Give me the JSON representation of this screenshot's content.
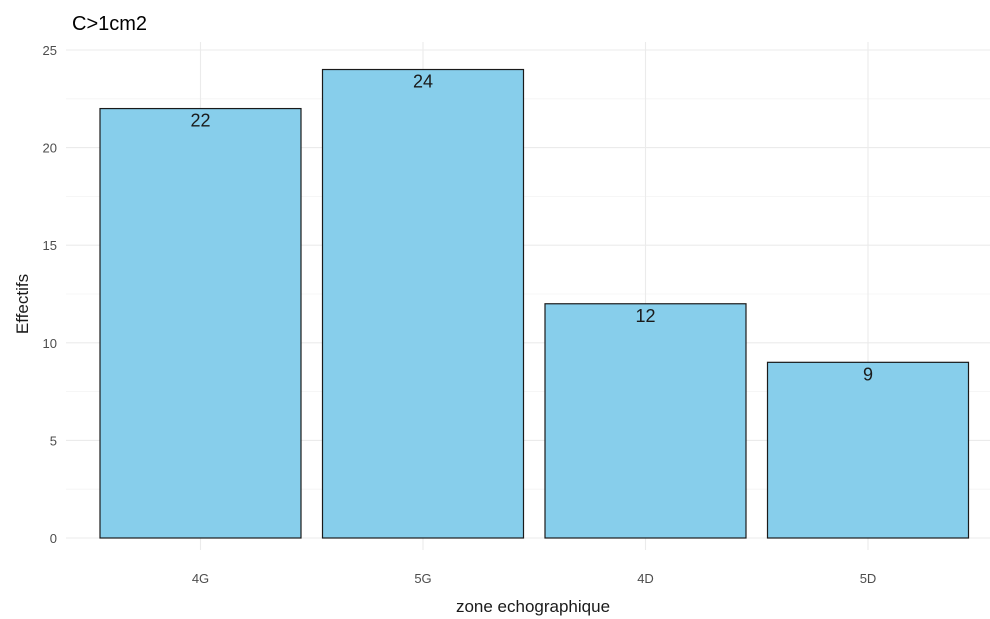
{
  "chart_data": {
    "type": "bar",
    "title": "C>1cm2",
    "xlabel": "zone echographique",
    "ylabel": "Effectifs",
    "categories": [
      "4G",
      "5G",
      "4D",
      "5D"
    ],
    "values": [
      22,
      24,
      12,
      9
    ],
    "data_labels": [
      "22",
      "24",
      "12",
      "9"
    ],
    "ylim": [
      0,
      25
    ],
    "yticks": [
      0,
      5,
      10,
      15,
      20,
      25
    ],
    "ytick_labels": [
      "0",
      "5",
      "10",
      "15",
      "20",
      "25"
    ],
    "grid": true,
    "legend": "none",
    "bar_color": "#87CEEB",
    "bar_outline_color": "#1a1a1a"
  }
}
